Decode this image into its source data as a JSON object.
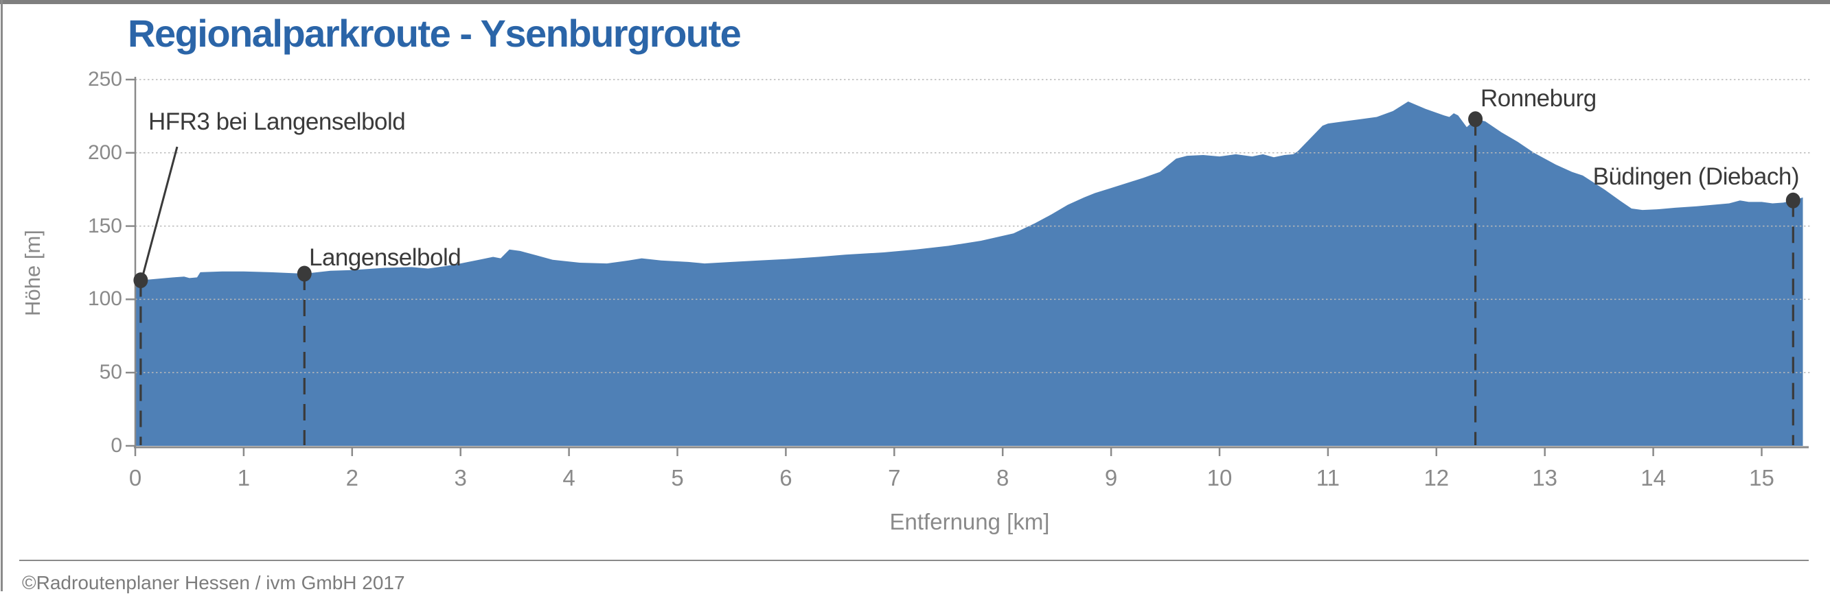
{
  "header": {
    "title": "Regionalparkroute - Ysenburgroute"
  },
  "footer": {
    "credit": "©Radroutenplaner Hessen / ivm GmbH 2017"
  },
  "colors": {
    "area_fill": "#4f80b6",
    "title": "#2b65a8",
    "axis": "#8a8a8a",
    "tick_label": "#8a8a8a",
    "gridline": "#b9b9b9",
    "marker": "#3a3a3a",
    "footer_text": "#7c7c7c",
    "top_bar": "#7f7f7f"
  },
  "chart_data": {
    "type": "area",
    "title": "Regionalparkroute - Ysenburgroute",
    "xlabel": "Entfernung [km]",
    "ylabel": "Höhe [m]",
    "xlim": [
      0,
      15.38
    ],
    "ylim": [
      0,
      250
    ],
    "x_ticks": [
      0,
      1,
      2,
      3,
      4,
      5,
      6,
      7,
      8,
      9,
      10,
      11,
      12,
      13,
      14,
      15
    ],
    "y_ticks": [
      0,
      50,
      100,
      150,
      200,
      250
    ],
    "grid": "horizontal-dotted-over-fill",
    "legend": "none",
    "series": [
      {
        "name": "Höhenprofil",
        "points": [
          [
            0,
            112
          ],
          [
            0.05,
            113
          ],
          [
            0.2,
            114
          ],
          [
            0.35,
            115
          ],
          [
            0.45,
            115.5
          ],
          [
            0.5,
            114.5
          ],
          [
            0.57,
            115
          ],
          [
            0.6,
            118.5
          ],
          [
            0.8,
            119
          ],
          [
            1.0,
            119
          ],
          [
            1.25,
            118.5
          ],
          [
            1.56,
            117.5
          ],
          [
            1.8,
            119.5
          ],
          [
            2.0,
            120
          ],
          [
            2.3,
            121.5
          ],
          [
            2.55,
            122
          ],
          [
            2.7,
            121
          ],
          [
            2.85,
            122.5
          ],
          [
            3.0,
            124.5
          ],
          [
            3.17,
            127
          ],
          [
            3.3,
            129
          ],
          [
            3.37,
            128
          ],
          [
            3.45,
            134
          ],
          [
            3.55,
            133
          ],
          [
            3.7,
            130
          ],
          [
            3.85,
            127
          ],
          [
            4.1,
            125
          ],
          [
            4.35,
            124.5
          ],
          [
            4.55,
            126.5
          ],
          [
            4.67,
            128
          ],
          [
            4.85,
            126.5
          ],
          [
            5.1,
            125.5
          ],
          [
            5.25,
            124.5
          ],
          [
            5.5,
            125.5
          ],
          [
            5.75,
            126.5
          ],
          [
            6.0,
            127.5
          ],
          [
            6.3,
            129
          ],
          [
            6.55,
            130.5
          ],
          [
            6.9,
            132
          ],
          [
            7.2,
            134
          ],
          [
            7.5,
            136.5
          ],
          [
            7.8,
            140
          ],
          [
            7.95,
            142.5
          ],
          [
            8.1,
            145
          ],
          [
            8.3,
            152
          ],
          [
            8.45,
            158
          ],
          [
            8.6,
            164.5
          ],
          [
            8.75,
            169.5
          ],
          [
            8.85,
            172.5
          ],
          [
            9.0,
            176
          ],
          [
            9.15,
            179.5
          ],
          [
            9.3,
            183
          ],
          [
            9.45,
            187
          ],
          [
            9.6,
            196
          ],
          [
            9.7,
            198
          ],
          [
            9.85,
            198.5
          ],
          [
            10.0,
            197.5
          ],
          [
            10.15,
            199
          ],
          [
            10.3,
            197.5
          ],
          [
            10.4,
            199
          ],
          [
            10.5,
            197
          ],
          [
            10.6,
            198.5
          ],
          [
            10.68,
            199
          ],
          [
            10.72,
            201
          ],
          [
            10.8,
            207
          ],
          [
            10.95,
            218.5
          ],
          [
            11.0,
            220
          ],
          [
            11.15,
            221.5
          ],
          [
            11.3,
            223
          ],
          [
            11.45,
            224.5
          ],
          [
            11.6,
            228.5
          ],
          [
            11.74,
            235
          ],
          [
            11.9,
            230
          ],
          [
            12.07,
            225.5
          ],
          [
            12.12,
            224.5
          ],
          [
            12.16,
            227
          ],
          [
            12.2,
            225.5
          ],
          [
            12.28,
            217.5
          ],
          [
            12.36,
            223
          ],
          [
            12.45,
            221.5
          ],
          [
            12.6,
            214
          ],
          [
            12.75,
            207.5
          ],
          [
            12.9,
            200
          ],
          [
            13.1,
            192
          ],
          [
            13.25,
            187
          ],
          [
            13.35,
            184.5
          ],
          [
            13.55,
            175
          ],
          [
            13.7,
            167
          ],
          [
            13.8,
            162
          ],
          [
            13.9,
            161
          ],
          [
            14.05,
            161.5
          ],
          [
            14.2,
            162.5
          ],
          [
            14.4,
            163.5
          ],
          [
            14.55,
            164.5
          ],
          [
            14.7,
            165.5
          ],
          [
            14.8,
            167.5
          ],
          [
            14.88,
            166.5
          ],
          [
            15.0,
            166.5
          ],
          [
            15.1,
            165.5
          ],
          [
            15.2,
            166
          ],
          [
            15.29,
            167.5
          ],
          [
            15.38,
            169.5
          ]
        ]
      }
    ],
    "markers": [
      {
        "label": "HFR3 bei Langenselbold",
        "km": 0.05,
        "elevation_m": 113
      },
      {
        "label": "Langenselbold",
        "km": 1.56,
        "elevation_m": 117.5
      },
      {
        "label": "Ronneburg",
        "km": 12.36,
        "elevation_m": 223
      },
      {
        "label": "Büdingen (Diebach)",
        "km": 15.29,
        "elevation_m": 167.5
      }
    ]
  }
}
